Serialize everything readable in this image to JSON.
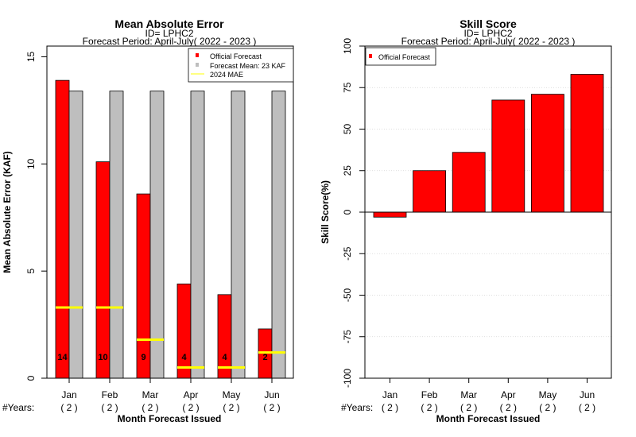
{
  "colors": {
    "official": "#ff0000",
    "mean": "#bebebe",
    "mae_line": "#ffff00",
    "grid": "#d3d3d3",
    "frame": "#000000"
  },
  "left": {
    "title": "Mean Absolute Error",
    "subtitle_id": "ID= LPHC2",
    "subtitle_period": "Forecast Period: April-July( 2022 - 2023 )",
    "ylabel": "Mean Absolute Error (KAF)",
    "xlabel": "Month Forecast Issued",
    "years_label": "#Years:",
    "legend": {
      "official": "Official Forecast",
      "mean": "Forecast Mean: 23 KAF",
      "mae": " 2024  MAE"
    }
  },
  "right": {
    "title": "Skill Score",
    "subtitle_id": "ID= LPHC2",
    "subtitle_period": "Forecast Period: April-July( 2022 - 2023 )",
    "ylabel": "Skill Score(%)",
    "xlabel": "Month Forecast Issued",
    "years_label": "#Years:",
    "legend": {
      "official": "Official Forecast"
    }
  },
  "chart_data": [
    {
      "type": "bar",
      "title": "Mean Absolute Error",
      "ylabel": "Mean Absolute Error (KAF)",
      "xlabel": "Month Forecast Issued",
      "categories": [
        "Jan",
        "Feb",
        "Mar",
        "Apr",
        "May",
        "Jun"
      ],
      "years": [
        "( 2 )",
        "( 2 )",
        "( 2 )",
        "( 2 )",
        "( 2 )",
        "( 2 )"
      ],
      "series": [
        {
          "name": "Official Forecast",
          "values": [
            13.9,
            10.1,
            8.6,
            4.4,
            3.9,
            2.3
          ]
        },
        {
          "name": "Forecast Mean: 23 KAF",
          "values": [
            13.4,
            13.4,
            13.4,
            13.4,
            13.4,
            13.4
          ]
        },
        {
          "name": " 2024  MAE",
          "values": [
            3.3,
            3.3,
            1.8,
            0.5,
            0.5,
            1.2
          ]
        }
      ],
      "bar_labels": [
        "14",
        "10",
        "9",
        "4",
        "4",
        "2"
      ],
      "ylim": [
        0,
        15.5
      ],
      "yticks": [
        0,
        5,
        10,
        15
      ],
      "legend_position": "top-right"
    },
    {
      "type": "bar",
      "title": "Skill Score",
      "ylabel": "Skill Score(%)",
      "xlabel": "Month Forecast Issued",
      "categories": [
        "Jan",
        "Feb",
        "Mar",
        "Apr",
        "May",
        "Jun"
      ],
      "years": [
        "( 2 )",
        "( 2 )",
        "( 2 )",
        "( 2 )",
        "( 2 )",
        "( 2 )"
      ],
      "series": [
        {
          "name": "Official Forecast",
          "values": [
            -3,
            25,
            36,
            67.5,
            71,
            83
          ]
        }
      ],
      "ylim": [
        -100,
        100
      ],
      "yticks": [
        -100,
        -75,
        -50,
        -25,
        0,
        25,
        50,
        75,
        100
      ],
      "grid": true,
      "legend_position": "top-left"
    }
  ]
}
